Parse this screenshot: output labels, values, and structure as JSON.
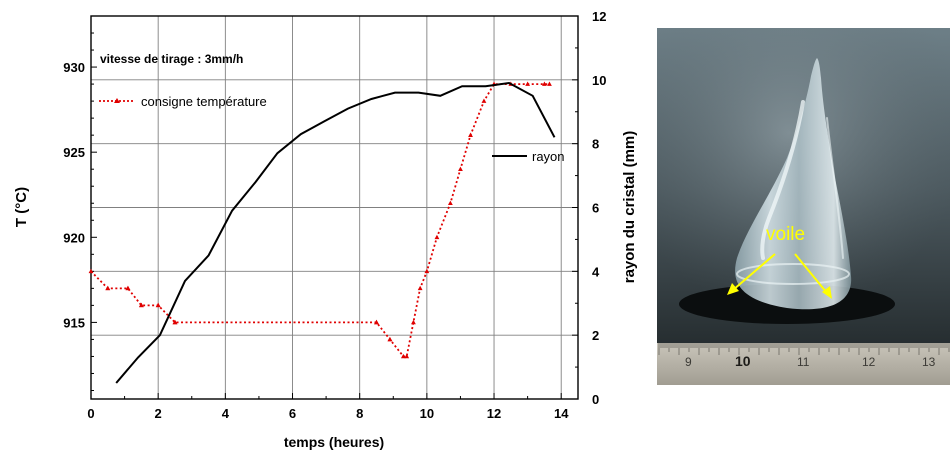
{
  "chart_data": {
    "type": "line",
    "x_axis": {
      "label": "temps (heures)",
      "range": [
        0,
        14.5
      ],
      "ticks": [
        0,
        2,
        4,
        6,
        8,
        10,
        12,
        14
      ],
      "tick_labels": [
        "0",
        "2",
        "4",
        "6",
        "8",
        "10",
        "12",
        "14"
      ]
    },
    "y_axis_left": {
      "label": "T (°C)",
      "range": [
        910.5,
        933
      ],
      "ticks": [
        915,
        920,
        925,
        930
      ],
      "tick_labels": [
        "915",
        "920",
        "925",
        "930"
      ]
    },
    "y_axis_right": {
      "label": "rayon du cristal (mm)",
      "range": [
        0,
        12
      ],
      "ticks": [
        0,
        2,
        4,
        6,
        8,
        10,
        12
      ],
      "tick_labels": [
        "0",
        "2",
        "4",
        "6",
        "8",
        "10",
        "12"
      ]
    },
    "series": [
      {
        "name": "consigne température",
        "axis": "left",
        "style": "dotted-line-with-markers",
        "color": "#e00000",
        "x": [
          0,
          0.5,
          0.5,
          1.1,
          1.1,
          1.5,
          1.5,
          2.0,
          2.0,
          2.5,
          2.5,
          8.5,
          8.5,
          8.9,
          8.9,
          9.3,
          9.4,
          9.6,
          9.8,
          10.0,
          10.3,
          10.7,
          11.0,
          11.3,
          11.7,
          12.0,
          12.5,
          13.0,
          13.5,
          13.65
        ],
        "y": [
          918,
          917,
          917,
          917,
          917,
          916,
          916,
          916,
          916,
          915,
          915,
          915,
          915,
          914,
          914,
          913,
          913,
          915,
          917,
          918,
          920,
          922,
          924,
          926,
          928,
          929,
          929,
          929,
          929,
          929
        ]
      },
      {
        "name": "rayon",
        "axis": "right",
        "style": "solid",
        "color": "#000000",
        "x": [
          0.75,
          1.4,
          2.05,
          2.8,
          3.5,
          4.2,
          4.9,
          5.55,
          6.25,
          6.95,
          7.65,
          8.35,
          9.05,
          9.75,
          10.4,
          11.05,
          11.75,
          12.45,
          13.15,
          13.8
        ],
        "y": [
          0.5,
          1.3,
          2.0,
          3.7,
          4.5,
          5.9,
          6.8,
          7.7,
          8.3,
          8.7,
          9.1,
          9.4,
          9.6,
          9.6,
          9.5,
          9.8,
          9.8,
          9.9,
          9.5,
          8.2
        ]
      }
    ],
    "annotations": [
      "vitesse de tirage : 3mm/h"
    ],
    "legend": [
      {
        "label": "consigne température",
        "placement": "top-left"
      },
      {
        "label": "rayon",
        "placement": "right"
      }
    ]
  },
  "photo": {
    "label": "voile",
    "ruler_numbers": [
      "9",
      "10",
      "11",
      "12",
      "13"
    ]
  }
}
